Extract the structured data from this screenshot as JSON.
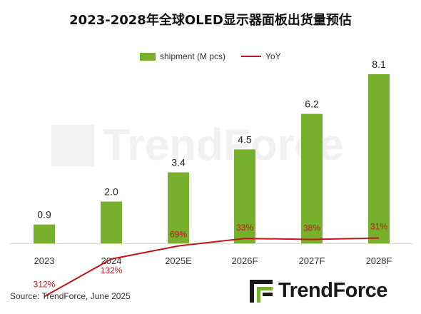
{
  "title": "2023-2028年全球OLED显示器面板出货量预估",
  "source": "Source: TrendForce, June 2025",
  "brand": {
    "name": "TrendForce",
    "watermark": "TrendForce"
  },
  "colors": {
    "bar": "#77b02c",
    "line": "#c0161c",
    "yoy_label": "#c0161c",
    "bar_label": "#222222"
  },
  "chart_data": {
    "type": "bar",
    "categories": [
      "2023",
      "2024",
      "2025E",
      "2026F",
      "2027F",
      "2028F"
    ],
    "series": [
      {
        "name": "shipment (M pcs)",
        "type": "bar",
        "values": [
          0.9,
          2.0,
          3.4,
          4.5,
          6.2,
          8.1
        ],
        "labels": [
          "0.9",
          "2.0",
          "3.4",
          "4.5",
          "6.2",
          "8.1"
        ]
      },
      {
        "name": "YoY",
        "type": "line",
        "values": [
          312,
          132,
          69,
          33,
          38,
          31
        ],
        "labels": [
          "312%",
          "132%",
          "69%",
          "33%",
          "38%",
          "31%"
        ]
      }
    ],
    "title": "2023-2028年全球OLED显示器面板出货量预估",
    "legend": "top-center",
    "grid": false
  }
}
